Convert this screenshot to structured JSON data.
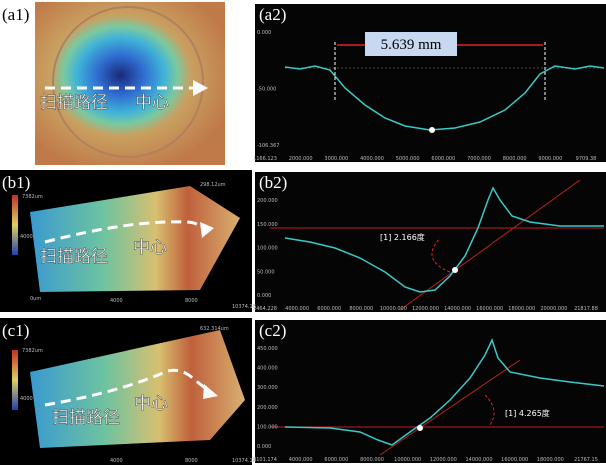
{
  "panels": [
    {
      "label": "(a1)",
      "annotations": [
        "扫描路径",
        "中心"
      ]
    },
    {
      "label": "(a2)",
      "measurement": "5.639 mm",
      "yticks": [
        "0.000",
        "-50.000",
        "-106.367"
      ],
      "xticks": [
        "1166.123",
        "2000.000",
        "3000.000",
        "4000.000",
        "5000.000",
        "6000.000",
        "7000.000",
        "8000.000",
        "9000.000",
        "9709.38"
      ]
    },
    {
      "label": "(b1)",
      "annotations": [
        "扫描路径",
        "中心"
      ],
      "scale_labels": [
        "298.12um",
        "7382um",
        "4000",
        "0um",
        "4000",
        "8000",
        "10374.18"
      ]
    },
    {
      "label": "(b2)",
      "measurement": "[1] 2.166度",
      "yticks": [
        "200.000",
        "150.000",
        "100.000",
        "50.000",
        "0.000"
      ],
      "xticks": [
        "2464.228",
        "4000.000",
        "6000.000",
        "8000.000",
        "10000.000",
        "12000.000",
        "14000.000",
        "16000.000",
        "18000.000",
        "20000.000",
        "21817.88"
      ]
    },
    {
      "label": "(c1)",
      "annotations": [
        "扫描路径",
        "中心"
      ],
      "scale_labels": [
        "632.314um",
        "7382um",
        "4000",
        "4000",
        "8000",
        "10374.18"
      ]
    },
    {
      "label": "(c2)",
      "measurement": "[1] 4.265度",
      "yticks": [
        "450.000",
        "400.000",
        "300.000",
        "200.000",
        "100.000",
        "0.000"
      ],
      "xticks": [
        "3101.174",
        "4000.000",
        "6000.000",
        "8000.000",
        "10000.000",
        "12000.000",
        "14000.000",
        "16000.000",
        "18000.000",
        "21767.15"
      ]
    }
  ]
}
